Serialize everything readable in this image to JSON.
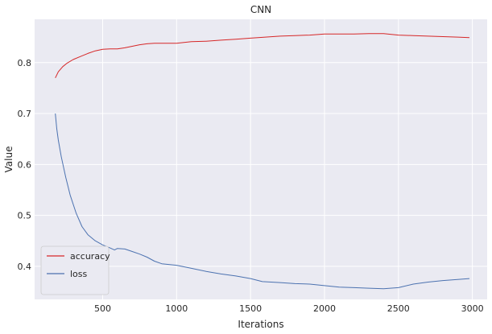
{
  "chart_data": {
    "type": "line",
    "title": "CNN",
    "xlabel": "Iterations",
    "ylabel": "Value",
    "xlim": [
      40,
      3100
    ],
    "ylim": [
      0.335,
      0.885
    ],
    "xticks": [
      500,
      1000,
      1500,
      2000,
      2500,
      3000
    ],
    "yticks": [
      0.4,
      0.5,
      0.6,
      0.7,
      0.8
    ],
    "grid": true,
    "legend": "lower-left",
    "colors": {
      "background": "#eaeaf2",
      "grid": "#ffffff",
      "accuracy": "#d62728",
      "loss": "#4c72b0"
    },
    "series": [
      {
        "name": "accuracy",
        "x": [
          180,
          200,
          230,
          260,
          300,
          350,
          400,
          450,
          500,
          550,
          600,
          650,
          700,
          750,
          800,
          850,
          900,
          950,
          1000,
          1100,
          1200,
          1300,
          1400,
          1500,
          1600,
          1700,
          1800,
          1900,
          2000,
          2100,
          2200,
          2300,
          2400,
          2500,
          2600,
          2700,
          2800,
          2900,
          2980
        ],
        "values": [
          0.77,
          0.782,
          0.792,
          0.799,
          0.806,
          0.812,
          0.818,
          0.823,
          0.826,
          0.827,
          0.827,
          0.829,
          0.832,
          0.835,
          0.837,
          0.838,
          0.838,
          0.838,
          0.838,
          0.841,
          0.842,
          0.844,
          0.846,
          0.848,
          0.85,
          0.852,
          0.853,
          0.854,
          0.856,
          0.856,
          0.856,
          0.857,
          0.857,
          0.854,
          0.853,
          0.852,
          0.851,
          0.85,
          0.849
        ]
      },
      {
        "name": "loss",
        "x": [
          180,
          190,
          200,
          220,
          250,
          280,
          320,
          360,
          400,
          450,
          500,
          550,
          580,
          600,
          650,
          700,
          750,
          800,
          850,
          900,
          1000,
          1100,
          1200,
          1300,
          1400,
          1500,
          1580,
          1700,
          1800,
          1900,
          2000,
          2100,
          2200,
          2300,
          2400,
          2500,
          2600,
          2700,
          2800,
          2900,
          2980
        ],
        "values": [
          0.7,
          0.67,
          0.648,
          0.615,
          0.575,
          0.54,
          0.505,
          0.478,
          0.462,
          0.45,
          0.442,
          0.436,
          0.432,
          0.435,
          0.434,
          0.429,
          0.424,
          0.418,
          0.41,
          0.405,
          0.402,
          0.396,
          0.39,
          0.385,
          0.381,
          0.376,
          0.37,
          0.368,
          0.366,
          0.365,
          0.362,
          0.359,
          0.358,
          0.357,
          0.356,
          0.358,
          0.365,
          0.369,
          0.372,
          0.374,
          0.376
        ]
      }
    ]
  }
}
